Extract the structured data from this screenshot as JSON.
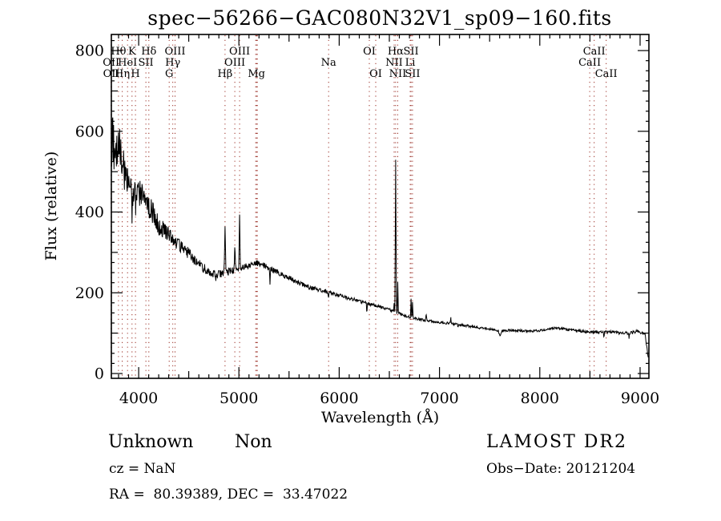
{
  "footer": {
    "classification": "Unknown",
    "subclass": "Non",
    "cz_text": "cz = NaN",
    "radec_text": "RA =  80.39389, DEC =  33.47022",
    "survey": "LAMOST DR2",
    "obs_date_text": "Obs−Date: 20121204"
  },
  "chart_data": {
    "type": "line",
    "title": "spec−56266−GAC080N32V1_sp09−160.fits",
    "xlabel": "Wavelength (Å)",
    "ylabel": "Flux (relative)",
    "xlim": [
      3728,
      9088
    ],
    "ylim": [
      -12,
      840
    ],
    "xticks": [
      4000,
      5000,
      6000,
      7000,
      8000,
      9000
    ],
    "yticks": [
      0,
      200,
      400,
      600,
      800
    ],
    "x_minor_step": 100,
    "x_medium_step": 500,
    "y_minor_step": 25,
    "y_medium_step": 100,
    "grid": false,
    "legend": "none",
    "trace_color": "#000000",
    "marker_line_color": "#992b22",
    "line_markers": [
      {
        "label": "OII",
        "wavelength": 3726.0,
        "row": 2
      },
      {
        "label": "OII",
        "wavelength": 3728.8,
        "row": 3
      },
      {
        "label": "Hθ",
        "wavelength": 3799.0,
        "row": 1
      },
      {
        "label": "Hη",
        "wavelength": 3836.5,
        "row": 3
      },
      {
        "label": "HeI",
        "wavelength": 3889.0,
        "row": 2
      },
      {
        "label": "K",
        "wavelength": 3933.7,
        "row": 1
      },
      {
        "label": "H",
        "wavelength": 3968.5,
        "row": 3
      },
      {
        "label": "SII",
        "wavelength": 4072.0,
        "row": 2
      },
      {
        "label": "Hδ",
        "wavelength": 4101.7,
        "row": 1
      },
      {
        "label": "G",
        "wavelength": 4305.0,
        "row": 3
      },
      {
        "label": "Hγ",
        "wavelength": 4340.5,
        "row": 2
      },
      {
        "label": "OIII",
        "wavelength": 4363.2,
        "row": 1
      },
      {
        "label": "Hβ",
        "wavelength": 4861.3,
        "row": 3
      },
      {
        "label": "OIII",
        "wavelength": 4958.9,
        "row": 2
      },
      {
        "label": "OIII",
        "wavelength": 5006.8,
        "row": 1
      },
      {
        "label": "Mg",
        "wavelength": 5175.4,
        "row": 3
      },
      {
        "label": "Na",
        "wavelength": 5894.0,
        "row": 2
      },
      {
        "label": "OI",
        "wavelength": 6300.2,
        "row": 1
      },
      {
        "label": "OI",
        "wavelength": 6363.9,
        "row": 3
      },
      {
        "label": "NII",
        "wavelength": 6548.1,
        "row": 2
      },
      {
        "label": "Hα",
        "wavelength": 6562.8,
        "row": 1
      },
      {
        "label": "NII",
        "wavelength": 6583.5,
        "row": 3
      },
      {
        "label": "Li",
        "wavelength": 6707.8,
        "row": 2
      },
      {
        "label": "SII",
        "wavelength": 6716.4,
        "row": 1
      },
      {
        "label": "SII",
        "wavelength": 6730.8,
        "row": 3
      },
      {
        "label": "CaII",
        "wavelength": 8498.0,
        "row": 2
      },
      {
        "label": "CaII",
        "wavelength": 8542.1,
        "row": 1
      },
      {
        "label": "CaII",
        "wavelength": 8662.1,
        "row": 3
      }
    ],
    "extra_marker_wavelengths": [
      5167.3,
      5183.6
    ],
    "continuum_points": [
      [
        3730,
        555
      ],
      [
        3760,
        580
      ],
      [
        3800,
        555
      ],
      [
        3850,
        505
      ],
      [
        3900,
        482
      ],
      [
        3935,
        450
      ],
      [
        3970,
        458
      ],
      [
        4000,
        450
      ],
      [
        4100,
        418
      ],
      [
        4200,
        368
      ],
      [
        4300,
        345
      ],
      [
        4400,
        318
      ],
      [
        4500,
        297
      ],
      [
        4600,
        272
      ],
      [
        4700,
        251
      ],
      [
        4800,
        246
      ],
      [
        4861,
        250
      ],
      [
        4900,
        253
      ],
      [
        5000,
        261
      ],
      [
        5100,
        268
      ],
      [
        5200,
        274
      ],
      [
        5300,
        261
      ],
      [
        5400,
        249
      ],
      [
        5500,
        237
      ],
      [
        5600,
        224
      ],
      [
        5700,
        214
      ],
      [
        5800,
        207
      ],
      [
        5900,
        201
      ],
      [
        6000,
        193
      ],
      [
        6100,
        186
      ],
      [
        6200,
        180
      ],
      [
        6300,
        172
      ],
      [
        6400,
        166
      ],
      [
        6500,
        158
      ],
      [
        6563,
        152
      ],
      [
        6620,
        146
      ],
      [
        6700,
        140
      ],
      [
        6800,
        134
      ],
      [
        6900,
        130
      ],
      [
        7000,
        127
      ],
      [
        7100,
        124
      ],
      [
        7200,
        121
      ],
      [
        7300,
        117
      ],
      [
        7400,
        113
      ],
      [
        7500,
        110
      ],
      [
        7600,
        106
      ],
      [
        7700,
        107
      ],
      [
        7800,
        106
      ],
      [
        7900,
        105
      ],
      [
        8000,
        106
      ],
      [
        8100,
        111
      ],
      [
        8180,
        113
      ],
      [
        8300,
        108
      ],
      [
        8400,
        105
      ],
      [
        8500,
        103
      ],
      [
        8600,
        102
      ],
      [
        8700,
        103
      ],
      [
        8800,
        101
      ],
      [
        8900,
        100
      ],
      [
        8960,
        104
      ],
      [
        9010,
        101
      ],
      [
        9050,
        97
      ],
      [
        9070,
        62
      ],
      [
        9085,
        32
      ]
    ],
    "emission_lines": [
      {
        "wavelength": 4861.3,
        "peak": 118,
        "width": 10
      },
      {
        "wavelength": 4958.9,
        "peak": 62,
        "width": 8
      },
      {
        "wavelength": 5006.8,
        "peak": 140,
        "width": 8
      },
      {
        "wavelength": 6548.1,
        "peak": 22,
        "width": 6
      },
      {
        "wavelength": 6562.8,
        "peak": 378,
        "width": 8
      },
      {
        "wavelength": 6583.5,
        "peak": 80,
        "width": 6
      },
      {
        "wavelength": 6716.4,
        "peak": 48,
        "width": 6
      },
      {
        "wavelength": 6730.8,
        "peak": 40,
        "width": 6
      },
      {
        "wavelength": 6868.0,
        "peak": 17,
        "width": 8
      },
      {
        "wavelength": 7113.0,
        "peak": 13,
        "width": 6
      }
    ],
    "absorption_features": [
      {
        "wavelength": 3933.7,
        "depth": 40,
        "width": 12
      },
      {
        "wavelength": 3968.5,
        "depth": 30,
        "width": 12
      },
      {
        "wavelength": 4770.0,
        "depth": 25,
        "width": 5
      },
      {
        "wavelength": 5310.0,
        "depth": 40,
        "width": 5
      },
      {
        "wavelength": 5894.0,
        "depth": 12,
        "width": 10
      },
      {
        "wavelength": 6276.0,
        "depth": 28,
        "width": 5
      },
      {
        "wavelength": 7186.0,
        "depth": 8,
        "width": 8
      },
      {
        "wavelength": 7605.0,
        "depth": 16,
        "width": 20
      },
      {
        "wavelength": 8640.0,
        "depth": 14,
        "width": 5
      },
      {
        "wavelength": 8890.0,
        "depth": 13,
        "width": 5
      }
    ],
    "noise_amplitude": [
      [
        3730,
        85
      ],
      [
        3780,
        70
      ],
      [
        3850,
        55
      ],
      [
        3950,
        42
      ],
      [
        4050,
        34
      ],
      [
        4200,
        26
      ],
      [
        4350,
        18
      ],
      [
        4500,
        14
      ],
      [
        4700,
        11
      ],
      [
        4900,
        9
      ],
      [
        5100,
        8
      ],
      [
        5400,
        6.5
      ],
      [
        5700,
        5.5
      ],
      [
        6000,
        4.5
      ],
      [
        6400,
        3.8
      ],
      [
        6800,
        3.2
      ],
      [
        7300,
        3
      ],
      [
        7800,
        3
      ],
      [
        8300,
        3.2
      ],
      [
        8800,
        3.6
      ],
      [
        9085,
        4
      ]
    ]
  }
}
